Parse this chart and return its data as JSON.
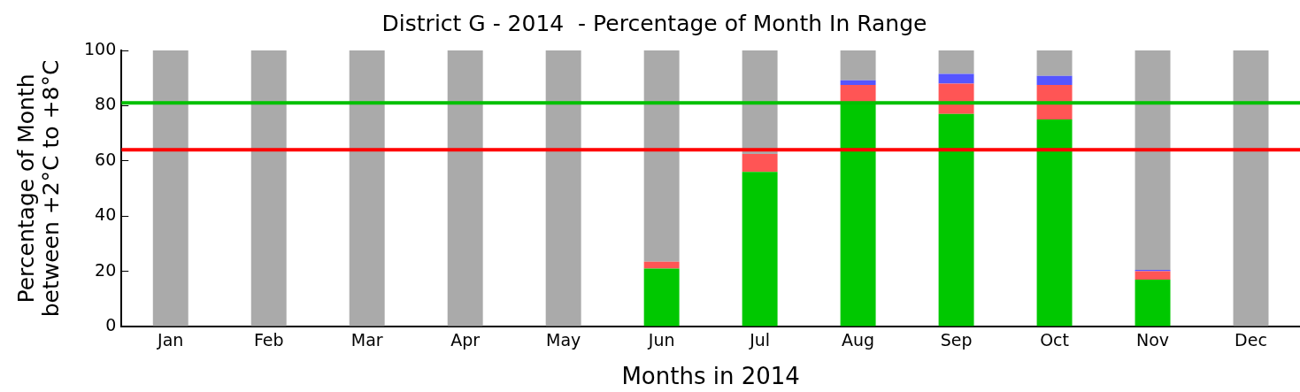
{
  "chart_data": {
    "type": "bar",
    "title": "District G - 2014  - Percentage of Month In Range",
    "xlabel": "Months in 2014",
    "ylabel": "Percentage of Month\nbetween +2°C to +8°C",
    "categories": [
      "Jan",
      "Feb",
      "Mar",
      "Apr",
      "May",
      "Jun",
      "Jul",
      "Aug",
      "Sep",
      "Oct",
      "Nov",
      "Dec"
    ],
    "stacked": true,
    "series": [
      {
        "color": "#00c800",
        "values": [
          0,
          0,
          0,
          0,
          0,
          21,
          56,
          81,
          77,
          75,
          17,
          0
        ]
      },
      {
        "color": "#ff5555",
        "values": [
          0,
          0,
          0,
          0,
          0,
          2.5,
          6.5,
          6.5,
          11,
          12.5,
          3,
          0
        ]
      },
      {
        "color": "#5555ff",
        "values": [
          0,
          0,
          0,
          0,
          0,
          0,
          0,
          1.7,
          3.5,
          3.3,
          0.5,
          0
        ]
      },
      {
        "color": "#aaaaaa",
        "values": [
          100,
          100,
          100,
          100,
          100,
          76.5,
          37.5,
          10.8,
          8.5,
          9.2,
          79.5,
          100
        ]
      }
    ],
    "ylim": [
      0,
      100
    ],
    "yticks": [
      0,
      20,
      40,
      60,
      80,
      100
    ],
    "grid": false,
    "legend": false,
    "ref_lines": [
      {
        "axis": "y",
        "value": 81,
        "color": "#00c000"
      },
      {
        "axis": "y",
        "value": 64,
        "color": "#ff0000"
      }
    ]
  }
}
